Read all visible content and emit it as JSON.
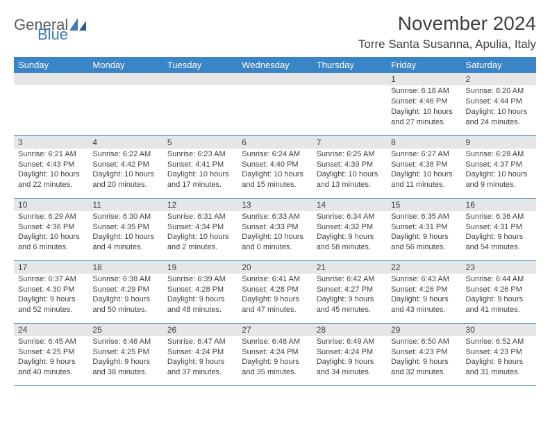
{
  "brand": {
    "part1": "General",
    "part2": "Blue",
    "color1": "#5a5a5a",
    "color2": "#3a7bbf"
  },
  "header": {
    "title": "November 2024",
    "location": "Torre Santa Susanna, Apulia, Italy"
  },
  "style": {
    "header_bg": "#3a85c8",
    "header_fg": "#ffffff",
    "daynum_bg": "#e6e6e6",
    "rule_color": "#3a85c8",
    "text_color": "#3f3f3f",
    "page_bg": "#ffffff",
    "title_fontsize": 28,
    "location_fontsize": 17,
    "weekday_fontsize": 13,
    "body_fontsize": 11
  },
  "weekdays": [
    "Sunday",
    "Monday",
    "Tuesday",
    "Wednesday",
    "Thursday",
    "Friday",
    "Saturday"
  ],
  "weeks": [
    [
      null,
      null,
      null,
      null,
      null,
      {
        "n": "1",
        "sunrise": "Sunrise: 6:18 AM",
        "sunset": "Sunset: 4:46 PM",
        "daylight": "Daylight: 10 hours and 27 minutes."
      },
      {
        "n": "2",
        "sunrise": "Sunrise: 6:20 AM",
        "sunset": "Sunset: 4:44 PM",
        "daylight": "Daylight: 10 hours and 24 minutes."
      }
    ],
    [
      {
        "n": "3",
        "sunrise": "Sunrise: 6:21 AM",
        "sunset": "Sunset: 4:43 PM",
        "daylight": "Daylight: 10 hours and 22 minutes."
      },
      {
        "n": "4",
        "sunrise": "Sunrise: 6:22 AM",
        "sunset": "Sunset: 4:42 PM",
        "daylight": "Daylight: 10 hours and 20 minutes."
      },
      {
        "n": "5",
        "sunrise": "Sunrise: 6:23 AM",
        "sunset": "Sunset: 4:41 PM",
        "daylight": "Daylight: 10 hours and 17 minutes."
      },
      {
        "n": "6",
        "sunrise": "Sunrise: 6:24 AM",
        "sunset": "Sunset: 4:40 PM",
        "daylight": "Daylight: 10 hours and 15 minutes."
      },
      {
        "n": "7",
        "sunrise": "Sunrise: 6:25 AM",
        "sunset": "Sunset: 4:39 PM",
        "daylight": "Daylight: 10 hours and 13 minutes."
      },
      {
        "n": "8",
        "sunrise": "Sunrise: 6:27 AM",
        "sunset": "Sunset: 4:38 PM",
        "daylight": "Daylight: 10 hours and 11 minutes."
      },
      {
        "n": "9",
        "sunrise": "Sunrise: 6:28 AM",
        "sunset": "Sunset: 4:37 PM",
        "daylight": "Daylight: 10 hours and 9 minutes."
      }
    ],
    [
      {
        "n": "10",
        "sunrise": "Sunrise: 6:29 AM",
        "sunset": "Sunset: 4:36 PM",
        "daylight": "Daylight: 10 hours and 6 minutes."
      },
      {
        "n": "11",
        "sunrise": "Sunrise: 6:30 AM",
        "sunset": "Sunset: 4:35 PM",
        "daylight": "Daylight: 10 hours and 4 minutes."
      },
      {
        "n": "12",
        "sunrise": "Sunrise: 6:31 AM",
        "sunset": "Sunset: 4:34 PM",
        "daylight": "Daylight: 10 hours and 2 minutes."
      },
      {
        "n": "13",
        "sunrise": "Sunrise: 6:33 AM",
        "sunset": "Sunset: 4:33 PM",
        "daylight": "Daylight: 10 hours and 0 minutes."
      },
      {
        "n": "14",
        "sunrise": "Sunrise: 6:34 AM",
        "sunset": "Sunset: 4:32 PM",
        "daylight": "Daylight: 9 hours and 58 minutes."
      },
      {
        "n": "15",
        "sunrise": "Sunrise: 6:35 AM",
        "sunset": "Sunset: 4:31 PM",
        "daylight": "Daylight: 9 hours and 56 minutes."
      },
      {
        "n": "16",
        "sunrise": "Sunrise: 6:36 AM",
        "sunset": "Sunset: 4:31 PM",
        "daylight": "Daylight: 9 hours and 54 minutes."
      }
    ],
    [
      {
        "n": "17",
        "sunrise": "Sunrise: 6:37 AM",
        "sunset": "Sunset: 4:30 PM",
        "daylight": "Daylight: 9 hours and 52 minutes."
      },
      {
        "n": "18",
        "sunrise": "Sunrise: 6:38 AM",
        "sunset": "Sunset: 4:29 PM",
        "daylight": "Daylight: 9 hours and 50 minutes."
      },
      {
        "n": "19",
        "sunrise": "Sunrise: 6:39 AM",
        "sunset": "Sunset: 4:28 PM",
        "daylight": "Daylight: 9 hours and 48 minutes."
      },
      {
        "n": "20",
        "sunrise": "Sunrise: 6:41 AM",
        "sunset": "Sunset: 4:28 PM",
        "daylight": "Daylight: 9 hours and 47 minutes."
      },
      {
        "n": "21",
        "sunrise": "Sunrise: 6:42 AM",
        "sunset": "Sunset: 4:27 PM",
        "daylight": "Daylight: 9 hours and 45 minutes."
      },
      {
        "n": "22",
        "sunrise": "Sunrise: 6:43 AM",
        "sunset": "Sunset: 4:26 PM",
        "daylight": "Daylight: 9 hours and 43 minutes."
      },
      {
        "n": "23",
        "sunrise": "Sunrise: 6:44 AM",
        "sunset": "Sunset: 4:26 PM",
        "daylight": "Daylight: 9 hours and 41 minutes."
      }
    ],
    [
      {
        "n": "24",
        "sunrise": "Sunrise: 6:45 AM",
        "sunset": "Sunset: 4:25 PM",
        "daylight": "Daylight: 9 hours and 40 minutes."
      },
      {
        "n": "25",
        "sunrise": "Sunrise: 6:46 AM",
        "sunset": "Sunset: 4:25 PM",
        "daylight": "Daylight: 9 hours and 38 minutes."
      },
      {
        "n": "26",
        "sunrise": "Sunrise: 6:47 AM",
        "sunset": "Sunset: 4:24 PM",
        "daylight": "Daylight: 9 hours and 37 minutes."
      },
      {
        "n": "27",
        "sunrise": "Sunrise: 6:48 AM",
        "sunset": "Sunset: 4:24 PM",
        "daylight": "Daylight: 9 hours and 35 minutes."
      },
      {
        "n": "28",
        "sunrise": "Sunrise: 6:49 AM",
        "sunset": "Sunset: 4:24 PM",
        "daylight": "Daylight: 9 hours and 34 minutes."
      },
      {
        "n": "29",
        "sunrise": "Sunrise: 6:50 AM",
        "sunset": "Sunset: 4:23 PM",
        "daylight": "Daylight: 9 hours and 32 minutes."
      },
      {
        "n": "30",
        "sunrise": "Sunrise: 6:52 AM",
        "sunset": "Sunset: 4:23 PM",
        "daylight": "Daylight: 9 hours and 31 minutes."
      }
    ]
  ]
}
